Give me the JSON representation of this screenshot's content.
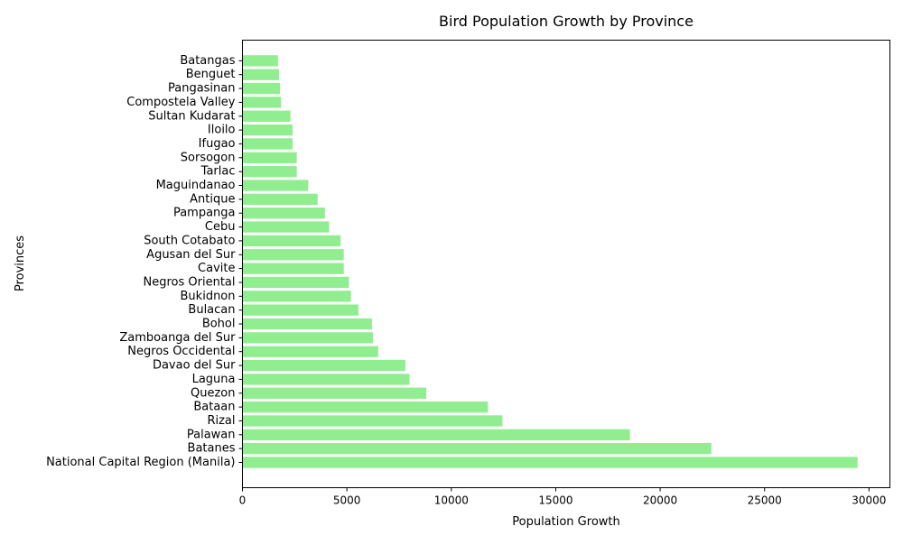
{
  "chart_data": {
    "type": "bar",
    "orientation": "horizontal",
    "title": "Bird Population Growth by Province",
    "xlabel": "Population Growth",
    "ylabel": "Provinces",
    "xlim": [
      0,
      31000
    ],
    "xticks": [
      0,
      5000,
      10000,
      15000,
      20000,
      25000,
      30000
    ],
    "grid": false,
    "bar_color": "#90ee90",
    "categories": [
      "National Capital Region (Manila)",
      "Batanes",
      "Palawan",
      "Rizal",
      "Bataan",
      "Quezon",
      "Laguna",
      "Davao del Sur",
      "Negros Occidental",
      "Zamboanga del Sur",
      "Bohol",
      "Bulacan",
      "Bukidnon",
      "Negros Oriental",
      "Cavite",
      "Agusan del Sur",
      "South Cotabato",
      "Cebu",
      "Pampanga",
      "Antique",
      "Maguindanao",
      "Tarlac",
      "Sorsogon",
      "Ifugao",
      "Iloilo",
      "Sultan Kudarat",
      "Compostela Valley",
      "Pangasinan",
      "Benguet",
      "Batangas"
    ],
    "values": [
      29450,
      22450,
      18550,
      12450,
      11750,
      8800,
      8000,
      7800,
      6500,
      6250,
      6200,
      5550,
      5200,
      5100,
      4850,
      4850,
      4700,
      4150,
      3950,
      3600,
      3150,
      2600,
      2600,
      2400,
      2400,
      2300,
      1850,
      1800,
      1750,
      1700
    ]
  }
}
